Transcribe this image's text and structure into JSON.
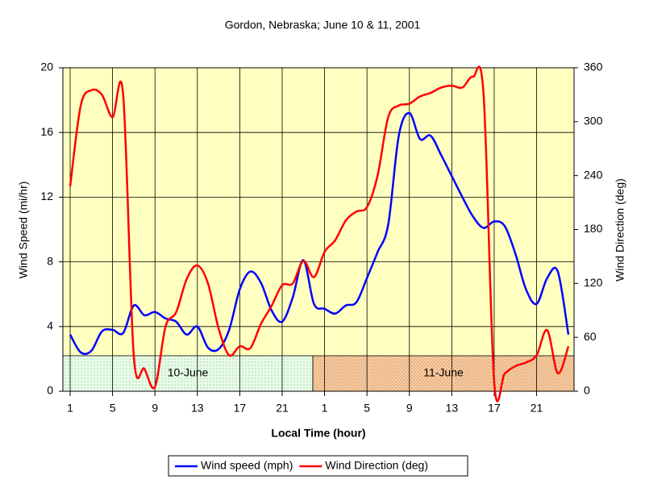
{
  "chart_data": {
    "type": "line",
    "title": "Gordon, Nebraska; June 10 & 11, 2001",
    "x_label": "Local Time (hour)",
    "y_label": "Wind Speed (mi/hr)",
    "y2_label": "Wind Direction (deg)",
    "categories": [
      "1",
      null,
      null,
      null,
      "5",
      null,
      null,
      null,
      "9",
      null,
      null,
      null,
      "13",
      null,
      null,
      null,
      "17",
      null,
      null,
      null,
      "21",
      null,
      null,
      null,
      "1",
      null,
      null,
      null,
      "5",
      null,
      null,
      null,
      "9",
      null,
      null,
      null,
      "13",
      null,
      null,
      null,
      "17",
      null,
      null,
      null,
      "21",
      null,
      null,
      null
    ],
    "ylim": [
      0,
      20
    ],
    "yticks": [
      0,
      4,
      8,
      12,
      16,
      20
    ],
    "y2lim": [
      0,
      360
    ],
    "y2ticks": [
      0,
      60,
      120,
      180,
      240,
      300,
      360
    ],
    "grid": true,
    "legend": "bottom",
    "annotations": [
      {
        "text": "10-June",
        "color": "#e0f8d8"
      },
      {
        "text": "11-June",
        "color": "#f4c89c"
      }
    ],
    "series": [
      {
        "name": "Wind speed (mph)",
        "color": "#0000ff",
        "values": [
          3.5,
          2.4,
          2.5,
          3.7,
          3.8,
          3.6,
          5.3,
          4.7,
          4.9,
          4.5,
          4.3,
          3.5,
          4.0,
          2.7,
          2.6,
          3.8,
          6.3,
          7.4,
          6.7,
          5.0,
          4.3,
          5.8,
          8.1,
          5.4,
          5.1,
          4.8,
          5.3,
          5.5,
          7.0,
          8.6,
          10.3,
          15.8,
          17.2,
          15.6,
          15.8,
          14.6,
          13.3,
          12.0,
          10.8,
          10.1,
          10.5,
          10.2,
          8.5,
          6.3,
          5.4,
          7.0,
          7.4,
          3.5
        ]
      },
      {
        "name": "Wind Direction (deg)",
        "color": "#ff0000",
        "axis": "y2",
        "values": [
          228,
          318,
          335,
          330,
          305,
          330,
          40,
          25,
          5,
          72,
          88,
          125,
          140,
          120,
          70,
          40,
          50,
          48,
          75,
          95,
          118,
          120,
          145,
          127,
          155,
          168,
          190,
          200,
          205,
          240,
          305,
          318,
          320,
          328,
          332,
          338,
          340,
          338,
          350,
          330,
          10,
          20,
          28,
          32,
          40,
          68,
          20,
          50
        ]
      }
    ]
  }
}
